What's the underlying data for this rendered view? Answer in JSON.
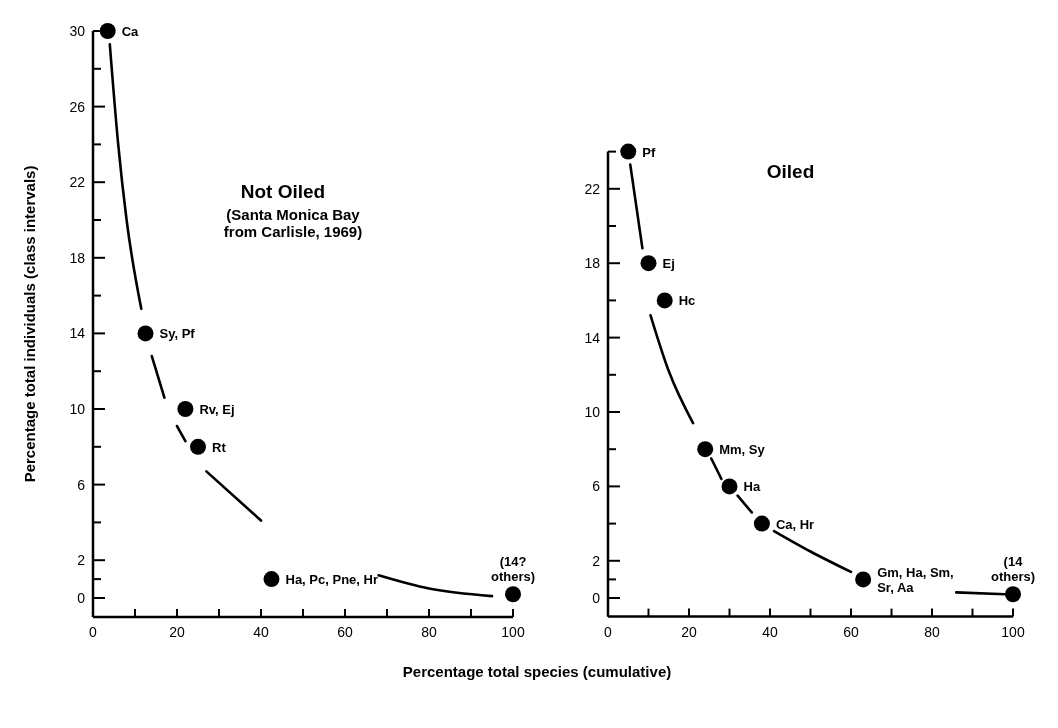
{
  "chart_data": [
    {
      "type": "scatter",
      "title": "Not Oiled",
      "subtitle": "(Santa Monica Bay\nfrom Carlisle, 1969)",
      "xlabel": "Percentage total species (cumulative)",
      "ylabel": "Percentage total individuals (class intervals)",
      "xlim": [
        0,
        100
      ],
      "ylim": [
        -1,
        30
      ],
      "xticks": [
        0,
        {
          "value": 10,
          "label": null
        },
        20,
        {
          "value": 30,
          "label": null
        },
        40,
        {
          "value": 50,
          "label": null
        },
        60,
        {
          "value": 70,
          "label": null
        },
        80,
        {
          "value": 90,
          "label": null
        },
        100
      ],
      "yticks": [
        0,
        {
          "value": 1,
          "label": null
        },
        2,
        {
          "value": 4,
          "label": null
        },
        6,
        {
          "value": 8,
          "label": null
        },
        10,
        {
          "value": 12,
          "label": null
        },
        14,
        {
          "value": 16,
          "label": null
        },
        18,
        {
          "value": 20,
          "label": null
        },
        22,
        {
          "value": 24,
          "label": null
        },
        26,
        {
          "value": 28,
          "label": null
        },
        30
      ],
      "marker": "circle",
      "grid": false,
      "series": [
        {
          "color": "#000000",
          "x": [
            3.5,
            12.5,
            22,
            25,
            42.5,
            100
          ],
          "values": [
            30,
            14,
            10,
            8,
            1,
            0.2
          ]
        },
        {
          "type": "line",
          "color": "#000000",
          "line_style": "solid",
          "marker": "none",
          "x": [
            4,
            6,
            8,
            11.5,
            null,
            14,
            17,
            null,
            20,
            22,
            null,
            27,
            40,
            null,
            68,
            80,
            95
          ],
          "values": [
            29.3,
            24,
            20,
            15.3,
            null,
            12.8,
            10.6,
            null,
            9.1,
            8.3,
            null,
            6.7,
            4.1,
            null,
            1.2,
            0.5,
            0.1
          ]
        }
      ],
      "annotations": [
        {
          "text": "Ca",
          "x": 3.5,
          "y": 30
        },
        {
          "text": "Sy, Pf",
          "x": 12.5,
          "y": 14
        },
        {
          "text": "Rv, Ej",
          "x": 22,
          "y": 10
        },
        {
          "text": "Rt",
          "x": 25,
          "y": 8
        },
        {
          "text": "Ha, Pc, Pne, Hr",
          "x": 42.5,
          "y": 1
        },
        {
          "text": "(14?\nothers)",
          "x": 100,
          "y": 0.2
        }
      ]
    },
    {
      "type": "scatter",
      "title": "Oiled",
      "xlim": [
        0,
        100
      ],
      "ylim": [
        -1,
        24
      ],
      "xticks": [
        0,
        {
          "value": 10,
          "label": null
        },
        20,
        {
          "value": 30,
          "label": null
        },
        40,
        {
          "value": 50,
          "label": null
        },
        60,
        {
          "value": 70,
          "label": null
        },
        80,
        {
          "value": 90,
          "label": null
        },
        100
      ],
      "yticks": [
        0,
        {
          "value": 1,
          "label": null
        },
        2,
        {
          "value": 4,
          "label": null
        },
        6,
        {
          "value": 8,
          "label": null
        },
        10,
        {
          "value": 12,
          "label": null
        },
        14,
        {
          "value": 16,
          "label": null
        },
        18,
        {
          "value": 20,
          "label": null
        },
        22,
        {
          "value": 24,
          "label": null
        }
      ],
      "marker": "circle",
      "grid": false,
      "series": [
        {
          "color": "#000000",
          "x": [
            5,
            10,
            14,
            24,
            30,
            38,
            63,
            100
          ],
          "values": [
            24,
            18,
            16,
            8,
            6,
            4,
            1,
            0.2
          ]
        },
        {
          "type": "line",
          "color": "#000000",
          "line_style": "solid",
          "marker": "none",
          "x": [
            5.5,
            8.5,
            null,
            10.5,
            15,
            21,
            null,
            25.5,
            28,
            null,
            32,
            35.5,
            null,
            41,
            50,
            60,
            null,
            86,
            98
          ],
          "values": [
            23.3,
            18.8,
            null,
            15.2,
            12.2,
            9.4,
            null,
            7.5,
            6.4,
            null,
            5.5,
            4.6,
            null,
            3.6,
            2.5,
            1.4,
            null,
            0.3,
            0.2
          ]
        }
      ],
      "annotations": [
        {
          "text": "Pf",
          "x": 5,
          "y": 24
        },
        {
          "text": "Ej",
          "x": 10,
          "y": 18
        },
        {
          "text": "Hc",
          "x": 14,
          "y": 16
        },
        {
          "text": "Mm, Sy",
          "x": 24,
          "y": 8
        },
        {
          "text": "Ha",
          "x": 30,
          "y": 6
        },
        {
          "text": "Ca, Hr",
          "x": 38,
          "y": 4
        },
        {
          "text": "Gm, Ha, Sm,\nSr, Aa",
          "x": 63,
          "y": 1
        },
        {
          "text": "(14\nothers)",
          "x": 100,
          "y": 0.2
        }
      ]
    }
  ]
}
